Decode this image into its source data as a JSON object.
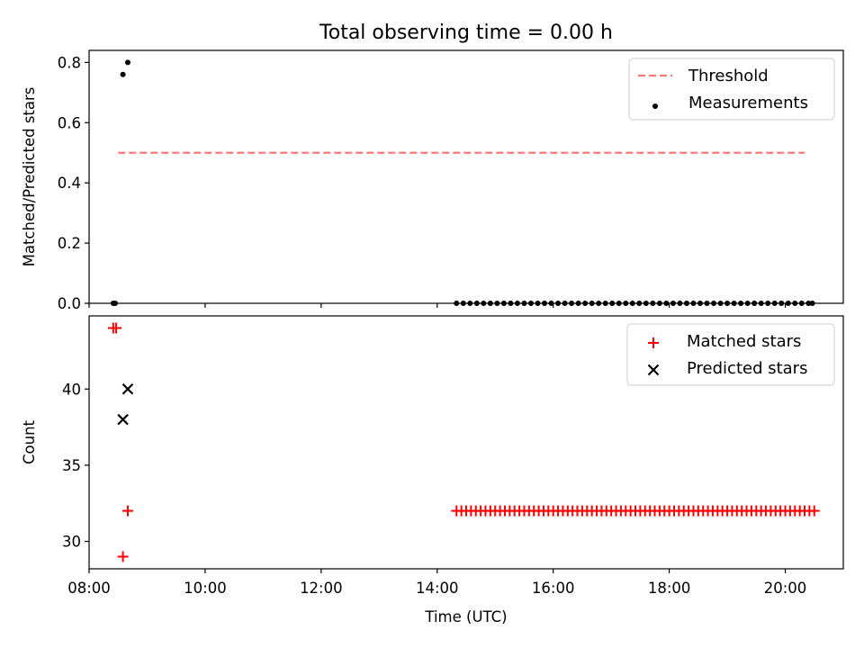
{
  "chart_data": {
    "title": "Total observing time = 0.00 h",
    "xlabel": "Time (UTC)",
    "xlim": [
      "08:00",
      "21:00"
    ],
    "xticks": [
      "08:00",
      "10:00",
      "12:00",
      "14:00",
      "16:00",
      "18:00",
      "20:00"
    ],
    "panels": [
      {
        "type": "scatter",
        "ylabel": "Matched/Predicted stars",
        "ylim": [
          0,
          0.84
        ],
        "yticks": [
          "0.0",
          "0.2",
          "0.4",
          "0.6",
          "0.8"
        ],
        "legend_position": "top-right",
        "threshold": {
          "name": "Threshold",
          "value": 0.5,
          "x_range": [
            "08:30",
            "20:20"
          ],
          "color": "#ff7777",
          "style": "dashed"
        },
        "series": [
          {
            "name": "Measurements",
            "marker": "dot",
            "color": "#000000",
            "points": [
              [
                "08:25",
                0
              ],
              [
                "08:27",
                0
              ],
              [
                "08:35",
                0.76
              ],
              [
                "08:40",
                0.8
              ],
              [
                "14:20",
                0
              ],
              [
                "14:27",
                0
              ],
              [
                "14:34",
                0
              ],
              [
                "14:41",
                0
              ],
              [
                "14:48",
                0
              ],
              [
                "14:55",
                0
              ],
              [
                "15:02",
                0
              ],
              [
                "15:09",
                0
              ],
              [
                "15:16",
                0
              ],
              [
                "15:23",
                0
              ],
              [
                "15:30",
                0
              ],
              [
                "15:37",
                0
              ],
              [
                "15:44",
                0
              ],
              [
                "15:51",
                0
              ],
              [
                "15:58",
                0
              ],
              [
                "16:05",
                0
              ],
              [
                "16:12",
                0
              ],
              [
                "16:19",
                0
              ],
              [
                "16:26",
                0
              ],
              [
                "16:33",
                0
              ],
              [
                "16:40",
                0
              ],
              [
                "16:47",
                0
              ],
              [
                "16:54",
                0
              ],
              [
                "17:01",
                0
              ],
              [
                "17:08",
                0
              ],
              [
                "17:15",
                0
              ],
              [
                "17:22",
                0
              ],
              [
                "17:29",
                0
              ],
              [
                "17:36",
                0
              ],
              [
                "17:43",
                0
              ],
              [
                "17:50",
                0
              ],
              [
                "17:57",
                0
              ],
              [
                "18:04",
                0
              ],
              [
                "18:11",
                0
              ],
              [
                "18:18",
                0
              ],
              [
                "18:25",
                0
              ],
              [
                "18:32",
                0
              ],
              [
                "18:39",
                0
              ],
              [
                "18:46",
                0
              ],
              [
                "18:53",
                0
              ],
              [
                "19:00",
                0
              ],
              [
                "19:07",
                0
              ],
              [
                "19:14",
                0
              ],
              [
                "19:21",
                0
              ],
              [
                "19:28",
                0
              ],
              [
                "19:35",
                0
              ],
              [
                "19:42",
                0
              ],
              [
                "19:49",
                0
              ],
              [
                "19:56",
                0
              ],
              [
                "20:03",
                0
              ],
              [
                "20:10",
                0
              ],
              [
                "20:17",
                0
              ],
              [
                "20:24",
                0
              ],
              [
                "20:28",
                0
              ]
            ]
          }
        ]
      },
      {
        "type": "scatter",
        "ylabel": "Count",
        "ylim": [
          28.2,
          44.8
        ],
        "yticks": [
          "30",
          "35",
          "40"
        ],
        "legend_position": "top-right",
        "series": [
          {
            "name": "Matched stars",
            "marker": "plus",
            "color": "#ff0000",
            "points": [
              [
                "08:25",
                44
              ],
              [
                "08:28",
                44
              ],
              [
                "08:35",
                29
              ],
              [
                "08:40",
                32
              ],
              [
                "14:20",
                32
              ],
              [
                "14:25",
                32
              ],
              [
                "14:30",
                32
              ],
              [
                "14:35",
                32
              ],
              [
                "14:40",
                32
              ],
              [
                "14:45",
                32
              ],
              [
                "14:50",
                32
              ],
              [
                "14:55",
                32
              ],
              [
                "15:00",
                32
              ],
              [
                "15:05",
                32
              ],
              [
                "15:10",
                32
              ],
              [
                "15:15",
                32
              ],
              [
                "15:20",
                32
              ],
              [
                "15:25",
                32
              ],
              [
                "15:30",
                32
              ],
              [
                "15:35",
                32
              ],
              [
                "15:40",
                32
              ],
              [
                "15:45",
                32
              ],
              [
                "15:50",
                32
              ],
              [
                "15:55",
                32
              ],
              [
                "16:00",
                32
              ],
              [
                "16:05",
                32
              ],
              [
                "16:10",
                32
              ],
              [
                "16:15",
                32
              ],
              [
                "16:20",
                32
              ],
              [
                "16:25",
                32
              ],
              [
                "16:30",
                32
              ],
              [
                "16:35",
                32
              ],
              [
                "16:40",
                32
              ],
              [
                "16:45",
                32
              ],
              [
                "16:50",
                32
              ],
              [
                "16:55",
                32
              ],
              [
                "17:00",
                32
              ],
              [
                "17:05",
                32
              ],
              [
                "17:10",
                32
              ],
              [
                "17:15",
                32
              ],
              [
                "17:20",
                32
              ],
              [
                "17:25",
                32
              ],
              [
                "17:30",
                32
              ],
              [
                "17:35",
                32
              ],
              [
                "17:40",
                32
              ],
              [
                "17:45",
                32
              ],
              [
                "17:50",
                32
              ],
              [
                "17:55",
                32
              ],
              [
                "18:00",
                32
              ],
              [
                "18:05",
                32
              ],
              [
                "18:10",
                32
              ],
              [
                "18:15",
                32
              ],
              [
                "18:20",
                32
              ],
              [
                "18:25",
                32
              ],
              [
                "18:30",
                32
              ],
              [
                "18:35",
                32
              ],
              [
                "18:40",
                32
              ],
              [
                "18:45",
                32
              ],
              [
                "18:50",
                32
              ],
              [
                "18:55",
                32
              ],
              [
                "19:00",
                32
              ],
              [
                "19:05",
                32
              ],
              [
                "19:10",
                32
              ],
              [
                "19:15",
                32
              ],
              [
                "19:20",
                32
              ],
              [
                "19:25",
                32
              ],
              [
                "19:30",
                32
              ],
              [
                "19:35",
                32
              ],
              [
                "19:40",
                32
              ],
              [
                "19:45",
                32
              ],
              [
                "19:50",
                32
              ],
              [
                "19:55",
                32
              ],
              [
                "20:00",
                32
              ],
              [
                "20:05",
                32
              ],
              [
                "20:10",
                32
              ],
              [
                "20:15",
                32
              ],
              [
                "20:20",
                32
              ],
              [
                "20:25",
                32
              ],
              [
                "20:30",
                32
              ]
            ]
          },
          {
            "name": "Predicted stars",
            "marker": "x",
            "color": "#000000",
            "points": [
              [
                "08:35",
                38
              ],
              [
                "08:40",
                40
              ]
            ]
          }
        ]
      }
    ]
  }
}
